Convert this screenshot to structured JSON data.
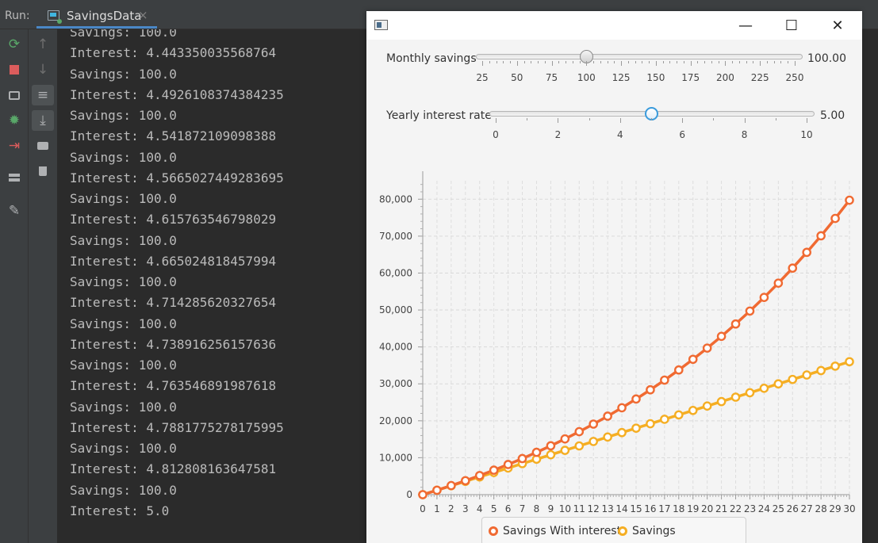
{
  "run_panel": {
    "label": "Run:",
    "tab_title": "SavingsData",
    "tab_close": "×"
  },
  "console_lines": [
    "Savings: 100.0",
    "Interest: 4.443350035568764",
    "Savings: 100.0",
    "Interest: 4.4926108374384235",
    "Savings: 100.0",
    "Interest: 4.541872109098388",
    "Savings: 100.0",
    "Interest: 4.5665027449283695",
    "Savings: 100.0",
    "Interest: 4.615763546798029",
    "Savings: 100.0",
    "Interest: 4.665024818457994",
    "Savings: 100.0",
    "Interest: 4.714285620327654",
    "Savings: 100.0",
    "Interest: 4.738916256157636",
    "Savings: 100.0",
    "Interest: 4.763546891987618",
    "Savings: 100.0",
    "Interest: 4.7881775278175995",
    "Savings: 100.0",
    "Interest: 4.812808163647581",
    "Savings: 100.0",
    "Interest: 5.0"
  ],
  "window": {
    "controls": {
      "minimize": "—",
      "maximize": "☐",
      "close": "✕"
    }
  },
  "monthly_slider": {
    "label": "Monthly savings",
    "value": 100,
    "value_text": "100.00",
    "min": 25,
    "max": 250,
    "tick_labels": [
      "25",
      "50",
      "75",
      "100",
      "125",
      "150",
      "175",
      "200",
      "225",
      "250"
    ]
  },
  "interest_slider": {
    "label": "Yearly interest rate",
    "value": 5,
    "value_text": "5.00",
    "min": 0,
    "max": 10,
    "tick_labels": [
      "0",
      "2",
      "4",
      "6",
      "8",
      "10"
    ]
  },
  "colors": {
    "savings_with_interest": "#f06a32",
    "savings": "#f5ae23",
    "accent": "#3a9bdc"
  },
  "chart_data": {
    "type": "line",
    "x": [
      0,
      1,
      2,
      3,
      4,
      5,
      6,
      7,
      8,
      9,
      10,
      11,
      12,
      13,
      14,
      15,
      16,
      17,
      18,
      19,
      20,
      21,
      22,
      23,
      24,
      25,
      26,
      27,
      28,
      29,
      30
    ],
    "xlim": [
      0,
      30
    ],
    "ylim": [
      0,
      85000
    ],
    "y_ticks": [
      0,
      10000,
      20000,
      30000,
      40000,
      50000,
      60000,
      70000,
      80000
    ],
    "y_tick_labels": [
      "0",
      "10,000",
      "20,000",
      "30,000",
      "40,000",
      "50,000",
      "60,000",
      "70,000",
      "80,000"
    ],
    "x_tick_labels": [
      "0",
      "1",
      "2",
      "3",
      "4",
      "5",
      "6",
      "7",
      "8",
      "9",
      "10",
      "11",
      "12",
      "13",
      "14",
      "15",
      "16",
      "17",
      "18",
      "19",
      "20",
      "21",
      "22",
      "23",
      "24",
      "25",
      "26",
      "27",
      "28",
      "29",
      "30"
    ],
    "grid": true,
    "legend_position": "bottom",
    "series": [
      {
        "name": "Savings With interest",
        "values": [
          0,
          1200,
          2460,
          3783,
          5172,
          6631,
          8163,
          9771,
          11460,
          13233,
          15094,
          17049,
          19102,
          21257,
          23520,
          25896,
          28390,
          31010,
          33760,
          36648,
          39681,
          42865,
          46208,
          49718,
          53404,
          57275,
          61339,
          65605,
          70086,
          74790,
          79730
        ]
      },
      {
        "name": "Savings",
        "values": [
          0,
          1200,
          2400,
          3600,
          4800,
          6000,
          7200,
          8400,
          9600,
          10800,
          12000,
          13200,
          14400,
          15600,
          16800,
          18000,
          19200,
          20400,
          21600,
          22800,
          24000,
          25200,
          26400,
          27600,
          28800,
          30000,
          31200,
          32400,
          33600,
          34800,
          36000
        ]
      }
    ]
  }
}
